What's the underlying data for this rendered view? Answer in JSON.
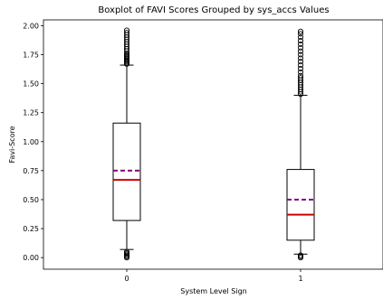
{
  "chart_data": {
    "type": "box",
    "title": "Boxplot of FAVI Scores Grouped by sys_accs Values",
    "xlabel": "System Level Sign",
    "ylabel": "Favi-Score",
    "categories": [
      "0",
      "1"
    ],
    "ylim": [
      -0.1,
      2.05
    ],
    "yticks": [
      0.0,
      0.25,
      0.5,
      0.75,
      1.0,
      1.25,
      1.5,
      1.75,
      2.0
    ],
    "ytick_labels": [
      "0.00",
      "0.25",
      "0.50",
      "0.75",
      "1.00",
      "1.25",
      "1.50",
      "1.75",
      "2.00"
    ],
    "grid": false,
    "boxes": [
      {
        "category": "0",
        "q1": 0.32,
        "median": 0.67,
        "mean": 0.75,
        "q3": 1.16,
        "whisker_low": 0.07,
        "whisker_high": 1.66,
        "outliers_high": [
          1.67,
          1.68,
          1.69,
          1.7,
          1.71,
          1.72,
          1.73,
          1.74,
          1.75,
          1.76,
          1.78,
          1.8,
          1.82,
          1.84,
          1.86,
          1.88,
          1.9,
          1.92,
          1.94,
          1.96
        ],
        "outliers_low": [
          0.05,
          0.04,
          0.03,
          0.02,
          0.01,
          0.0
        ]
      },
      {
        "category": "1",
        "q1": 0.15,
        "median": 0.37,
        "mean": 0.5,
        "q3": 0.76,
        "whisker_low": 0.03,
        "whisker_high": 1.4,
        "outliers_high": [
          1.41,
          1.43,
          1.45,
          1.47,
          1.49,
          1.51,
          1.53,
          1.55,
          1.57,
          1.6,
          1.63,
          1.66,
          1.69,
          1.72,
          1.75,
          1.78,
          1.81,
          1.84,
          1.87,
          1.9,
          1.93,
          1.95
        ],
        "outliers_low": [
          0.02,
          0.01,
          0.0
        ]
      }
    ],
    "colors": {
      "median": "#cc0000",
      "mean": "#800080",
      "box": "#000000"
    }
  }
}
